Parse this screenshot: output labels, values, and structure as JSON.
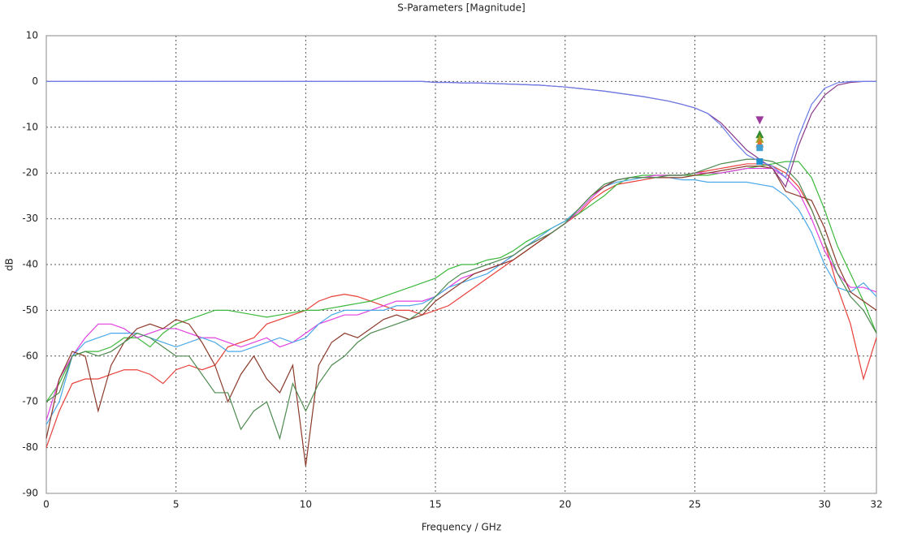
{
  "chart_data": {
    "type": "line",
    "title": "S-Parameters [Magnitude]",
    "x_label": "Frequency / GHz",
    "y_label": "dB",
    "xlim": [
      0,
      32
    ],
    "xticks": [
      0,
      5,
      10,
      15,
      20,
      25,
      30,
      32
    ],
    "ylim": [
      -90,
      10
    ],
    "yticks": [
      10,
      0,
      -10,
      -20,
      -30,
      -40,
      -50,
      -60,
      -70,
      -80,
      -90
    ],
    "grid": true,
    "x": [
      0,
      0.5,
      1,
      1.5,
      2,
      2.5,
      3,
      3.5,
      4,
      4.5,
      5,
      5.5,
      6,
      6.5,
      7,
      7.5,
      8,
      8.5,
      9,
      9.5,
      10,
      10.5,
      11,
      11.5,
      12,
      12.5,
      13,
      13.5,
      14,
      14.5,
      15,
      15.5,
      16,
      16.5,
      17,
      17.5,
      18,
      18.5,
      19,
      19.5,
      20,
      20.5,
      21,
      21.5,
      22,
      22.5,
      23,
      23.5,
      24,
      24.5,
      25,
      25.5,
      26,
      26.5,
      27,
      27.5,
      28,
      28.5,
      29,
      29.5,
      30,
      30.5,
      31,
      31.5,
      32
    ],
    "series": [
      {
        "color": "#e8403a",
        "values": [
          -80,
          -72,
          -66,
          -65,
          -65,
          -64,
          -63,
          -63,
          -64,
          -66,
          -63,
          -62,
          -63,
          -62,
          -58,
          -57,
          -56,
          -53,
          -52,
          -51,
          -50,
          -48,
          -47,
          -46.5,
          -47,
          -48,
          -49,
          -50,
          -50,
          -51,
          -50,
          -49,
          -47,
          -45,
          -43,
          -41,
          -39,
          -37,
          -35,
          -33,
          -31,
          -29,
          -26,
          -24,
          -22.5,
          -22,
          -21.5,
          -21,
          -20.5,
          -20.5,
          -20,
          -19.5,
          -19,
          -18.5,
          -18,
          -18,
          -18.5,
          -20,
          -23,
          -28,
          -35,
          -45,
          -53,
          -65,
          -56
        ]
      },
      {
        "color": "#3cb83c",
        "values": [
          -70,
          -66,
          -60,
          -59,
          -59,
          -58,
          -56,
          -56,
          -58,
          -55,
          -53,
          -52,
          -51,
          -50,
          -50,
          -50.5,
          -51,
          -51.5,
          -51,
          -50.5,
          -50,
          -50,
          -49.5,
          -49,
          -48.5,
          -48,
          -47,
          -46,
          -45,
          -44,
          -43,
          -41,
          -40,
          -40,
          -39,
          -38.5,
          -37,
          -35,
          -33.5,
          -32,
          -30.5,
          -29,
          -27,
          -25,
          -22.5,
          -21,
          -20.5,
          -20.5,
          -20.5,
          -20.5,
          -20.5,
          -20.5,
          -20,
          -19.5,
          -19,
          -18.5,
          -18,
          -17.5,
          -17.5,
          -21,
          -28,
          -36,
          -42,
          -48,
          -55
        ]
      },
      {
        "color": "#e040e0",
        "values": [
          -74,
          -65,
          -60,
          -56,
          -53,
          -53,
          -54,
          -56,
          -55,
          -54,
          -54,
          -55,
          -56,
          -56,
          -57,
          -58,
          -57,
          -56,
          -58,
          -57,
          -55,
          -53,
          -52,
          -51,
          -51,
          -50,
          -49,
          -48,
          -48,
          -48,
          -47,
          -45,
          -43,
          -42,
          -41,
          -40,
          -38,
          -36,
          -34.5,
          -33,
          -31,
          -28.5,
          -25.5,
          -23,
          -21.5,
          -21,
          -21,
          -20.5,
          -20.5,
          -20.5,
          -20,
          -20,
          -20,
          -19.5,
          -19,
          -19,
          -19,
          -21,
          -24,
          -30,
          -37,
          -42,
          -45,
          -45,
          -46
        ]
      },
      {
        "color": "#4aa8e8",
        "values": [
          -75,
          -70,
          -60,
          -57,
          -56,
          -55,
          -55,
          -55,
          -56,
          -57,
          -58,
          -57,
          -56,
          -57,
          -59,
          -59,
          -58,
          -57,
          -56,
          -57,
          -56,
          -53,
          -51,
          -50,
          -50,
          -50,
          -50,
          -49,
          -49,
          -48.5,
          -47,
          -45,
          -44,
          -43,
          -42,
          -40,
          -38,
          -36,
          -34,
          -32,
          -30.5,
          -28,
          -25,
          -23,
          -22,
          -21.5,
          -21,
          -21,
          -21,
          -21.5,
          -21.5,
          -22,
          -22,
          -22,
          -22,
          -22.5,
          -23,
          -25,
          -28,
          -33,
          -40,
          -45,
          -46,
          -44,
          -47
        ]
      },
      {
        "color": "#8b3a2a",
        "values": [
          -78,
          -65,
          -59,
          -60,
          -72,
          -62,
          -57,
          -54,
          -53,
          -54,
          -52,
          -53,
          -57,
          -62,
          -70,
          -64,
          -60,
          -65,
          -68,
          -62,
          -84,
          -62,
          -57,
          -55,
          -56,
          -54,
          -52,
          -51,
          -52,
          -51,
          -48,
          -46,
          -44,
          -42,
          -41,
          -40,
          -39,
          -37,
          -35,
          -33,
          -31,
          -28,
          -25,
          -23,
          -21.5,
          -21,
          -21,
          -21,
          -21,
          -21,
          -20.5,
          -20,
          -19.5,
          -19,
          -18.5,
          -18.5,
          -19,
          -24,
          -25,
          -26,
          -32,
          -40,
          -46,
          -48,
          -50
        ]
      },
      {
        "color": "#4e8a50",
        "values": [
          -70,
          -68,
          -60,
          -59,
          -60,
          -59,
          -57,
          -55,
          -56,
          -58,
          -60,
          -60,
          -64,
          -68,
          -68,
          -76,
          -72,
          -70,
          -78,
          -66,
          -72,
          -66,
          -62,
          -60,
          -57,
          -55,
          -54,
          -53,
          -52,
          -50,
          -47,
          -44,
          -42,
          -41,
          -40,
          -39,
          -38,
          -36,
          -34.5,
          -33,
          -31,
          -28,
          -25,
          -22.5,
          -21.5,
          -21,
          -21,
          -21,
          -20.5,
          -20.5,
          -20,
          -19,
          -18,
          -17.5,
          -17,
          -17,
          -17.5,
          -19,
          -22,
          -28,
          -35,
          -42,
          -47,
          -50,
          -55
        ]
      },
      {
        "color": "#8a3a8a",
        "values": [
          0,
          0,
          0,
          0,
          0,
          0,
          0,
          0,
          0,
          0,
          0,
          0,
          0,
          0,
          0,
          0,
          0,
          0,
          0,
          0,
          0,
          0,
          0,
          0,
          0,
          0,
          0,
          0,
          0,
          0,
          -0.2,
          -0.2,
          -0.3,
          -0.3,
          -0.4,
          -0.5,
          -0.6,
          -0.7,
          -0.8,
          -1,
          -1.2,
          -1.5,
          -1.8,
          -2.1,
          -2.5,
          -2.9,
          -3.3,
          -3.8,
          -4.3,
          -5,
          -5.8,
          -7,
          -9,
          -12,
          -15,
          -17,
          -19,
          -23,
          -14,
          -7,
          -3,
          -0.8,
          -0.2,
          0,
          0
        ]
      },
      {
        "color": "#6a7de8",
        "values": [
          0,
          0,
          0,
          0,
          0,
          0,
          0,
          0,
          0,
          0,
          0,
          0,
          0,
          0,
          0,
          0,
          0,
          0,
          0,
          0,
          0,
          0,
          0,
          0,
          0,
          0,
          0,
          0,
          0,
          0,
          -0.2,
          -0.2,
          -0.3,
          -0.3,
          -0.4,
          -0.5,
          -0.6,
          -0.7,
          -0.8,
          -1,
          -1.2,
          -1.5,
          -1.8,
          -2.1,
          -2.5,
          -2.9,
          -3.3,
          -3.8,
          -4.3,
          -5,
          -5.8,
          -7,
          -9.5,
          -13,
          -16,
          -17.5,
          -18.5,
          -21,
          -12,
          -5,
          -1.5,
          -0.3,
          0,
          0,
          0
        ]
      }
    ],
    "markers": [
      {
        "x": 27.5,
        "y": -8.5,
        "color": "#9b3a9b",
        "shape": "down"
      },
      {
        "x": 27.5,
        "y": -11.5,
        "color": "#2e8b2e",
        "shape": "up"
      },
      {
        "x": 27.5,
        "y": -12.5,
        "color": "#a0a020",
        "shape": "up"
      },
      {
        "x": 27.5,
        "y": -13.5,
        "color": "#e07030",
        "shape": "up"
      },
      {
        "x": 27.5,
        "y": -14.5,
        "color": "#40a0d0",
        "shape": "square"
      },
      {
        "x": 27.5,
        "y": -17.5,
        "color": "#2090d0",
        "shape": "square"
      }
    ]
  }
}
